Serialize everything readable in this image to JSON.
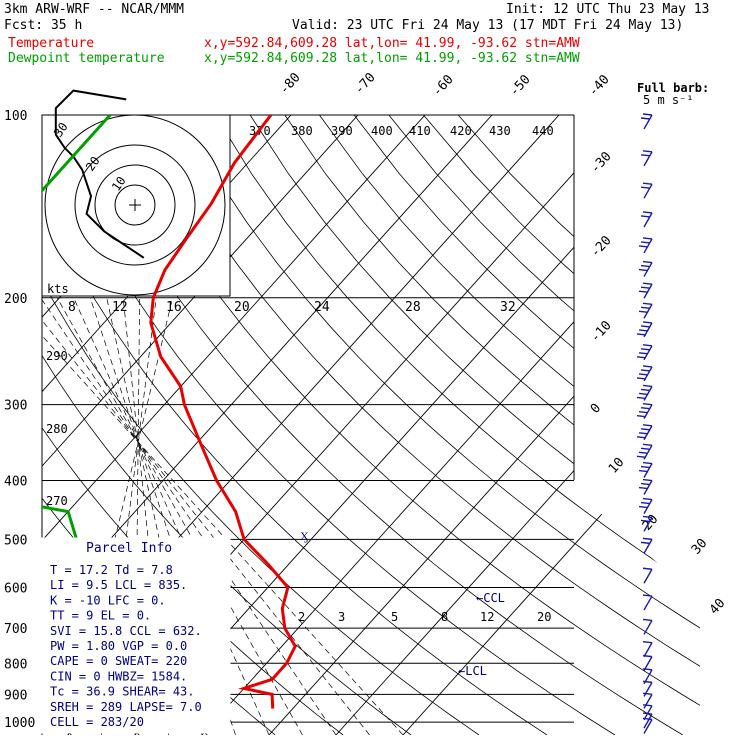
{
  "header": {
    "line1_left": "3km ARW-WRF -- NCAR/MMM",
    "line1_right": "Init: 12 UTC Thu 23 May 13",
    "line2_left": "Fcst:   35 h",
    "line2_right": "Valid: 23 UTC Fri 24 May 13 (17 MDT Fri 24 May 13)",
    "temp_label": "Temperature",
    "dew_label": "Dewpoint temperature",
    "loc_text": "x,y=592.84,609.28   lat,lon= 41.99, -93.62  stn=AMW",
    "temp_color": "#e80000",
    "dew_color": "#00a000"
  },
  "barb_legend": {
    "title": "Full barb:",
    "value": "5 m s⁻¹"
  },
  "hodograph": {
    "units": "kts",
    "ring_labels": [
      "30",
      "20",
      "10"
    ],
    "speed_labels": [
      "8",
      "12",
      "16",
      "20",
      "24",
      "28",
      "32"
    ]
  },
  "parcel_info": {
    "title": "Parcel Info",
    "lines": [
      "T  =   17.2  Td =   7.8",
      "LI =    9.5  LCL =  835.",
      "K  =    -10  LFC =    0.",
      "TT =      9  EL  =    0.",
      "SVI =  15.8  CCL =  632.",
      "PW =   1.80  VGP =  0.0",
      "CAPE =    0  SWEAT=  220",
      "CIN =     0  HWBZ= 1584.",
      "Tc =   36.9  SHEAR=  43.",
      "SREH =  289  LAPSE=  7.0",
      "CELL = 283/20"
    ]
  },
  "annotations": {
    "ccl": "←CCL",
    "lcl": "←LCL",
    "marker": "Ӽ"
  },
  "chart_data": {
    "type": "line",
    "title": "",
    "xlabel": "",
    "ylabel": "",
    "pressure_levels": [
      "100",
      "200",
      "300",
      "400",
      "500",
      "600",
      "700",
      "800",
      "900",
      "1000"
    ],
    "temperature_isotherm_labels": [
      "-80",
      "-70",
      "-60",
      "-50",
      "-40",
      "-30",
      "-20",
      "-10",
      "0",
      "10",
      "20",
      "30",
      "40"
    ],
    "theta_labels": [
      "370",
      "380",
      "390",
      "400",
      "410",
      "420",
      "430",
      "440",
      "290",
      "280",
      "270"
    ],
    "mixing_ratio_labels": [
      "2",
      "3",
      "5",
      "8",
      "12",
      "20"
    ],
    "series": [
      {
        "name": "Temperature",
        "pressure": [
          100,
          120,
          140,
          160,
          180,
          200,
          220,
          250,
          280,
          300,
          350,
          400,
          450,
          500,
          550,
          600,
          650,
          700,
          750,
          800,
          850,
          880,
          900,
          950
        ],
        "temperature": [
          -63,
          -62,
          -60,
          -59,
          -58,
          -56,
          -53,
          -47,
          -40,
          -37,
          -29,
          -22,
          -15,
          -10,
          -3,
          3,
          5,
          8,
          12,
          13,
          13,
          10,
          15,
          17
        ]
      },
      {
        "name": "Dewpoint temperature",
        "pressure": [
          100,
          150,
          200,
          250,
          300,
          330,
          360,
          400,
          450,
          500,
          550,
          600,
          650,
          680,
          700,
          750,
          800,
          850,
          900,
          950
        ],
        "temperature": [
          -87,
          -87,
          -88,
          -82,
          -88,
          -92,
          -85,
          -70,
          -40,
          -35,
          -31,
          -22,
          -18,
          -17,
          -20,
          -30,
          -60,
          -80,
          -20,
          8
        ]
      }
    ],
    "wind_barbs": {
      "pressure": [
        100,
        115,
        130,
        145,
        160,
        175,
        190,
        205,
        220,
        240,
        260,
        280,
        300,
        325,
        350,
        375,
        400,
        430,
        460,
        500,
        560,
        620,
        680,
        740,
        780,
        820,
        860,
        900,
        940,
        970,
        990
      ],
      "speed_barbs": [
        2,
        2,
        2,
        2,
        3,
        3,
        3,
        3,
        4,
        4,
        4,
        4,
        4,
        4,
        4,
        3,
        3,
        3,
        2,
        2,
        1,
        1,
        1,
        1,
        1,
        1,
        1,
        1,
        1,
        1,
        1
      ]
    },
    "hodograph_trace_kts": [
      [
        -2,
        24
      ],
      [
        -8,
        25
      ],
      [
        -14,
        26
      ],
      [
        -18,
        22
      ],
      [
        -18,
        16
      ],
      [
        -16,
        13
      ],
      [
        -14,
        11
      ],
      [
        -12,
        8
      ],
      [
        -10,
        2
      ],
      [
        -11,
        -2
      ],
      [
        -9,
        -4
      ],
      [
        -7,
        -6
      ],
      [
        -4,
        -8
      ],
      [
        2,
        -12
      ]
    ],
    "ylim": [
      1000,
      100
    ],
    "xlim": [
      -40,
      40
    ],
    "grid": true
  }
}
